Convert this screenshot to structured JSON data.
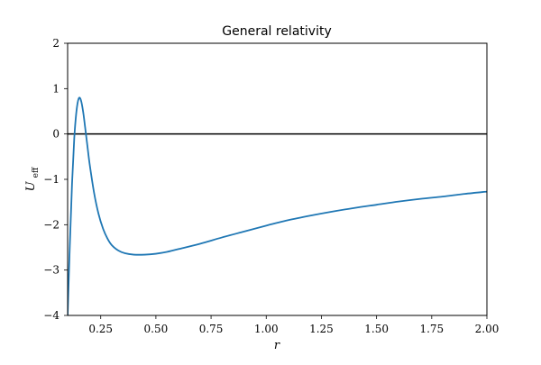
{
  "chart_data": {
    "type": "line",
    "title": "General relativity",
    "xlabel": "r",
    "ylabel_main": "U",
    "ylabel_sub": "eff",
    "xlim": [
      0.1,
      2.0
    ],
    "ylim": [
      -4,
      2
    ],
    "xticks": [
      0.25,
      0.5,
      0.75,
      1.0,
      1.25,
      1.5,
      1.75,
      2.0
    ],
    "xtick_labels": [
      "0.25",
      "0.50",
      "0.75",
      "1.00",
      "1.25",
      "1.50",
      "1.75",
      "2.00"
    ],
    "yticks": [
      -4,
      -3,
      -2,
      -1,
      0,
      1,
      2
    ],
    "ytick_labels": [
      "−4",
      "−3",
      "−2",
      "−1",
      "0",
      "1",
      "2"
    ],
    "grid": false,
    "hline": {
      "y": 0,
      "color": "#000000"
    },
    "series": [
      {
        "color": "#1f77b4",
        "x": [
          0.1,
          0.11,
          0.12,
          0.13,
          0.14,
          0.15,
          0.16,
          0.17,
          0.18,
          0.19,
          0.2,
          0.22,
          0.24,
          0.26,
          0.28,
          0.3,
          0.33,
          0.36,
          0.4,
          0.45,
          0.5,
          0.55,
          0.6,
          0.7,
          0.8,
          0.9,
          1.0,
          1.1,
          1.2,
          1.3,
          1.4,
          1.5,
          1.6,
          1.7,
          1.8,
          1.9,
          2.0
        ],
        "y": [
          -4.0,
          -2.45,
          -1.1,
          -0.1,
          0.5,
          0.78,
          0.75,
          0.5,
          0.12,
          -0.28,
          -0.67,
          -1.3,
          -1.76,
          -2.08,
          -2.3,
          -2.45,
          -2.57,
          -2.63,
          -2.66,
          -2.66,
          -2.64,
          -2.6,
          -2.54,
          -2.42,
          -2.28,
          -2.15,
          -2.02,
          -1.9,
          -1.8,
          -1.71,
          -1.63,
          -1.56,
          -1.49,
          -1.43,
          -1.38,
          -1.32,
          -1.27
        ]
      }
    ]
  }
}
